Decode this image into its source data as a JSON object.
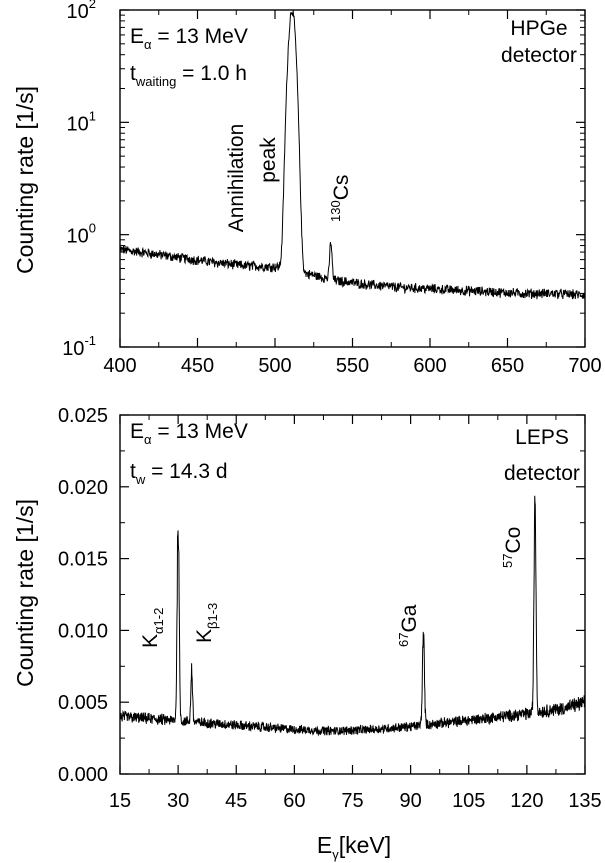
{
  "chart_data": [
    {
      "type": "line",
      "panel": "top",
      "title": "",
      "ylabel": "Counting rate [1/s]",
      "xlabel": "",
      "yscale": "log",
      "xlim": [
        400,
        700
      ],
      "ylim": [
        0.1,
        100
      ],
      "xticks": [
        "400",
        "450",
        "500",
        "550",
        "600",
        "650",
        "700"
      ],
      "yticks": [
        {
          "value": 0.1,
          "base": "10",
          "exp": "-1"
        },
        {
          "value": 1,
          "base": "10",
          "exp": "0"
        },
        {
          "value": 10,
          "base": "10",
          "exp": "1"
        },
        {
          "value": 100,
          "base": "10",
          "exp": "2"
        }
      ],
      "series_color": "#000000",
      "baseline": [
        [
          400,
          0.74
        ],
        [
          420,
          0.68
        ],
        [
          440,
          0.62
        ],
        [
          460,
          0.57
        ],
        [
          480,
          0.53
        ],
        [
          500,
          0.52
        ],
        [
          520,
          0.45
        ],
        [
          540,
          0.39
        ],
        [
          560,
          0.36
        ],
        [
          580,
          0.34
        ],
        [
          600,
          0.33
        ],
        [
          620,
          0.32
        ],
        [
          640,
          0.31
        ],
        [
          660,
          0.3
        ],
        [
          680,
          0.3
        ],
        [
          700,
          0.29
        ]
      ],
      "peaks": [
        {
          "center": 511,
          "height": 100,
          "fwhm": 4.6
        },
        {
          "center": 536,
          "height": 0.85,
          "fwhm": 1.6
        }
      ],
      "annotations": {
        "energy_label": {
          "main": "E",
          "sub": "α",
          "rest": " = 13 MeV"
        },
        "time_label": {
          "main": "t",
          "sub": "waiting",
          "rest": " = 1.0 h"
        },
        "detector_line1": "HPGe",
        "detector_line2": "detector",
        "annihilation_line1": "Annihilation",
        "annihilation_line2": "peak",
        "isotope": {
          "sup": "130",
          "main": "Cs"
        }
      }
    },
    {
      "type": "line",
      "panel": "bottom",
      "title": "",
      "ylabel": "Counting rate [1/s]",
      "xlabel": {
        "main": "E",
        "sub": "γ",
        "rest": "[keV]"
      },
      "yscale": "linear",
      "xlim": [
        15,
        135
      ],
      "ylim": [
        0,
        0.025
      ],
      "xticks": [
        "15",
        "30",
        "45",
        "60",
        "75",
        "90",
        "105",
        "120",
        "135"
      ],
      "yticks": [
        "0.000",
        "0.005",
        "0.010",
        "0.015",
        "0.020",
        "0.025"
      ],
      "series_color": "#000000",
      "baseline": [
        [
          15,
          0.004
        ],
        [
          20,
          0.0039
        ],
        [
          25,
          0.0038
        ],
        [
          30,
          0.0037
        ],
        [
          35,
          0.0036
        ],
        [
          40,
          0.0035
        ],
        [
          50,
          0.0033
        ],
        [
          60,
          0.0031
        ],
        [
          70,
          0.003
        ],
        [
          80,
          0.0031
        ],
        [
          90,
          0.0033
        ],
        [
          100,
          0.0036
        ],
        [
          110,
          0.0039
        ],
        [
          120,
          0.0042
        ],
        [
          130,
          0.0046
        ],
        [
          135,
          0.005
        ]
      ],
      "peaks": [
        {
          "center": 30.0,
          "height": 0.0178,
          "fwhm": 0.6
        },
        {
          "center": 33.5,
          "height": 0.0073,
          "fwhm": 0.5
        },
        {
          "center": 93.3,
          "height": 0.0097,
          "fwhm": 0.6
        },
        {
          "center": 122.1,
          "height": 0.0195,
          "fwhm": 0.6
        }
      ],
      "annotations": {
        "energy_label": {
          "main": "E",
          "sub": "α",
          "rest": " = 13 MeV"
        },
        "time_label": {
          "main": "t",
          "sub": "w",
          "rest": " = 14.3 d"
        },
        "detector_line1": "LEPS",
        "detector_line2": "detector",
        "k_alpha": {
          "main": "K",
          "sub": "α1-2"
        },
        "k_beta": {
          "main": "K",
          "sub": "β1-3"
        },
        "ga": {
          "sup": "67",
          "main": "Ga"
        },
        "co": {
          "sup": "57",
          "main": "Co"
        }
      }
    }
  ]
}
